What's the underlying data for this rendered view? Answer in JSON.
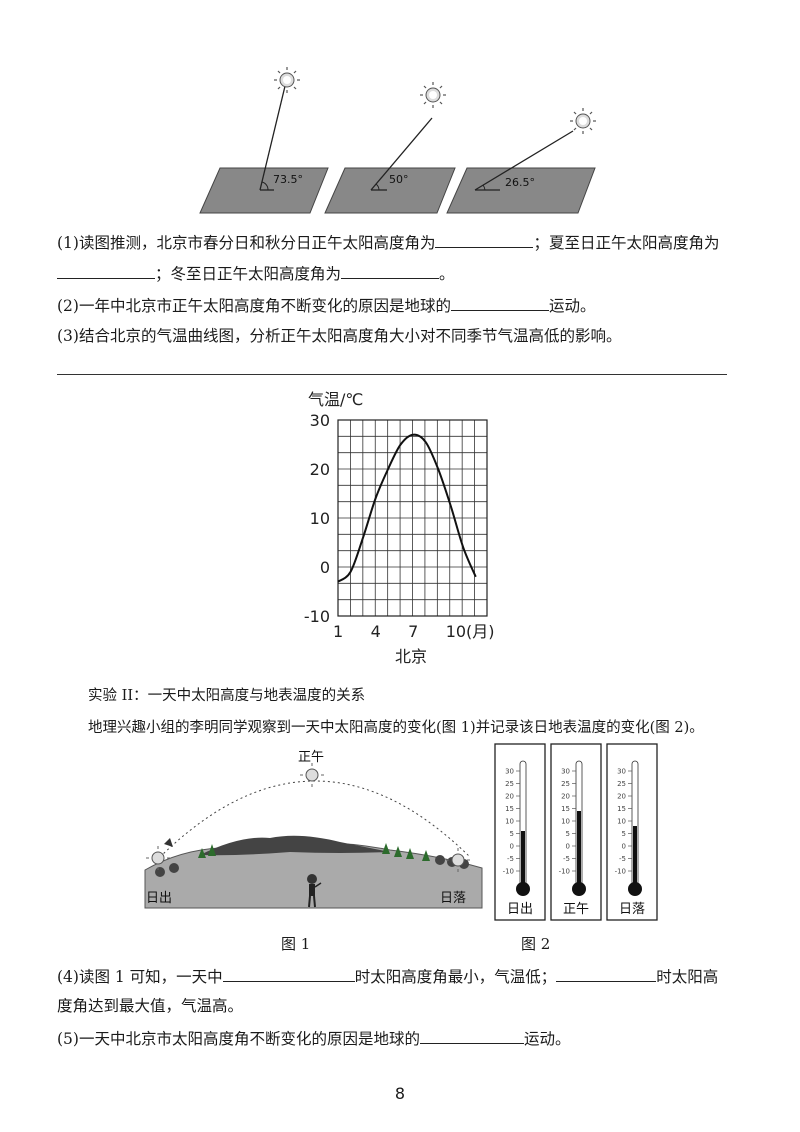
{
  "sun_figure": {
    "angles": [
      "73.5°",
      "50°",
      "26.5°"
    ]
  },
  "q1": {
    "line1_a": "(1)读图推测，北京市春分日和秋分日正午太阳高度角为",
    "line1_b": "；夏至日正午太阳高度角为",
    "line2_b": "；冬至日正午太阳高度角为",
    "line2_c": "。"
  },
  "q2": {
    "a": "(2)一年中北京市正午太阳高度角不断变化的原因是地球的",
    "b": "运动。"
  },
  "q3": {
    "text": "(3)结合北京的气温曲线图，分析正午太阳高度角大小对不同季节气温高低的影响。"
  },
  "chart_data": {
    "type": "line",
    "ylabel": "气温/℃",
    "xlabel": "北京",
    "x_tick_labels": [
      "1",
      "4",
      "7",
      "10(月)"
    ],
    "y_tick_labels": [
      "30",
      "20",
      "10",
      "0",
      "-10"
    ],
    "ylim": [
      -10,
      30
    ],
    "grid": true,
    "series": [
      {
        "x": [
          1,
          2,
          3,
          4,
          5,
          6,
          7,
          8,
          9,
          10,
          11,
          12
        ],
        "values": [
          -3,
          -1,
          6,
          14,
          20,
          25,
          27,
          25.5,
          20,
          12.5,
          4,
          -2
        ]
      }
    ]
  },
  "experiment": {
    "title": "实验 II：一天中太阳高度与地表温度的关系",
    "desc": "地理兴趣小组的李明同学观察到一天中太阳高度的变化(图 1)并记录该日地表温度的变化(图 2)。"
  },
  "fig1": {
    "noon": "正午",
    "sunrise": "日出",
    "sunset": "日落",
    "caption": "图 1"
  },
  "fig2": {
    "caption": "图 2",
    "scale": [
      "30",
      "25",
      "20",
      "15",
      "10",
      "5",
      "0",
      "-5",
      "-10"
    ],
    "thermometers": [
      {
        "label": "日出",
        "reading": 6
      },
      {
        "label": "正午",
        "reading": 14
      },
      {
        "label": "日落",
        "reading": 8
      }
    ]
  },
  "q4": {
    "a": "(4)读图 1 可知，一天中",
    "b": "时太阳高度角最小，气温低；",
    "c": "时太阳高",
    "d": "度角达到最大值，气温高。"
  },
  "q5": {
    "a": "(5)一天中北京市太阳高度角不断变化的原因是地球的",
    "b": "运动。"
  },
  "page_number": "8"
}
